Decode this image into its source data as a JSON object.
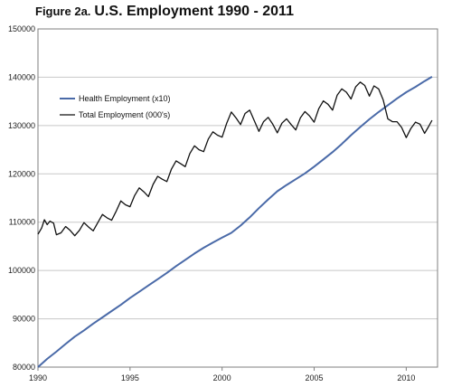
{
  "title": {
    "figure_label": "Figure 2a.",
    "text": "U.S. Employment 1990 - 2011"
  },
  "chart_data": {
    "type": "line",
    "title": "U.S. Employment 1990 - 2011",
    "xlabel": "",
    "ylabel": "",
    "xlim": [
      1990,
      2011.7
    ],
    "ylim": [
      80000,
      150000
    ],
    "x_ticks": [
      1990,
      1995,
      2000,
      2005,
      2010
    ],
    "y_ticks": [
      80000,
      90000,
      100000,
      110000,
      120000,
      130000,
      140000,
      150000
    ],
    "grid": "horizontal",
    "legend_position": "upper-left",
    "series": [
      {
        "name": "Health Employment (x10)",
        "color": "#4a6aa8",
        "points": [
          [
            1990.0,
            80000
          ],
          [
            1990.5,
            81700
          ],
          [
            1991.0,
            83200
          ],
          [
            1991.5,
            84800
          ],
          [
            1992.0,
            86300
          ],
          [
            1992.5,
            87600
          ],
          [
            1993.0,
            89000
          ],
          [
            1993.5,
            90300
          ],
          [
            1994.0,
            91600
          ],
          [
            1994.5,
            92900
          ],
          [
            1995.0,
            94300
          ],
          [
            1995.5,
            95600
          ],
          [
            1996.0,
            96900
          ],
          [
            1996.5,
            98200
          ],
          [
            1997.0,
            99500
          ],
          [
            1997.5,
            100900
          ],
          [
            1998.0,
            102200
          ],
          [
            1998.5,
            103500
          ],
          [
            1999.0,
            104700
          ],
          [
            1999.5,
            105800
          ],
          [
            2000.0,
            106800
          ],
          [
            2000.5,
            107800
          ],
          [
            2001.0,
            109300
          ],
          [
            2001.5,
            111000
          ],
          [
            2002.0,
            112900
          ],
          [
            2002.5,
            114700
          ],
          [
            2003.0,
            116400
          ],
          [
            2003.5,
            117700
          ],
          [
            2004.0,
            118900
          ],
          [
            2004.5,
            120100
          ],
          [
            2005.0,
            121500
          ],
          [
            2005.5,
            123000
          ],
          [
            2006.0,
            124500
          ],
          [
            2006.5,
            126200
          ],
          [
            2007.0,
            128000
          ],
          [
            2007.5,
            129700
          ],
          [
            2008.0,
            131300
          ],
          [
            2008.5,
            132800
          ],
          [
            2009.0,
            134200
          ],
          [
            2009.5,
            135600
          ],
          [
            2010.0,
            136900
          ],
          [
            2010.5,
            138000
          ],
          [
            2011.0,
            139200
          ],
          [
            2011.4,
            140100
          ]
        ]
      },
      {
        "name": "Total Employment (000's)",
        "color": "#111111",
        "points": [
          [
            1990.0,
            107500
          ],
          [
            1990.2,
            108800
          ],
          [
            1990.35,
            110500
          ],
          [
            1990.5,
            109500
          ],
          [
            1990.65,
            110200
          ],
          [
            1990.85,
            109800
          ],
          [
            1991.0,
            107400
          ],
          [
            1991.25,
            107800
          ],
          [
            1991.5,
            109100
          ],
          [
            1991.75,
            108300
          ],
          [
            1992.0,
            107200
          ],
          [
            1992.25,
            108300
          ],
          [
            1992.5,
            109900
          ],
          [
            1992.75,
            109000
          ],
          [
            1993.0,
            108200
          ],
          [
            1993.25,
            109900
          ],
          [
            1993.5,
            111600
          ],
          [
            1993.75,
            110900
          ],
          [
            1994.0,
            110400
          ],
          [
            1994.25,
            112300
          ],
          [
            1994.5,
            114400
          ],
          [
            1994.75,
            113600
          ],
          [
            1995.0,
            113200
          ],
          [
            1995.25,
            115500
          ],
          [
            1995.5,
            117100
          ],
          [
            1995.75,
            116300
          ],
          [
            1996.0,
            115300
          ],
          [
            1996.25,
            117800
          ],
          [
            1996.5,
            119500
          ],
          [
            1996.75,
            118900
          ],
          [
            1997.0,
            118400
          ],
          [
            1997.25,
            121000
          ],
          [
            1997.5,
            122700
          ],
          [
            1997.75,
            122100
          ],
          [
            1998.0,
            121500
          ],
          [
            1998.25,
            124200
          ],
          [
            1998.5,
            125800
          ],
          [
            1998.75,
            125000
          ],
          [
            1999.0,
            124600
          ],
          [
            1999.25,
            127200
          ],
          [
            1999.5,
            128700
          ],
          [
            1999.75,
            128000
          ],
          [
            2000.0,
            127600
          ],
          [
            2000.25,
            130500
          ],
          [
            2000.5,
            132800
          ],
          [
            2000.75,
            131600
          ],
          [
            2001.0,
            130200
          ],
          [
            2001.25,
            132500
          ],
          [
            2001.5,
            133200
          ],
          [
            2001.75,
            131000
          ],
          [
            2002.0,
            128800
          ],
          [
            2002.25,
            130800
          ],
          [
            2002.5,
            131700
          ],
          [
            2002.75,
            130300
          ],
          [
            2003.0,
            128500
          ],
          [
            2003.25,
            130500
          ],
          [
            2003.5,
            131400
          ],
          [
            2003.75,
            130200
          ],
          [
            2004.0,
            129100
          ],
          [
            2004.25,
            131600
          ],
          [
            2004.5,
            132900
          ],
          [
            2004.75,
            132000
          ],
          [
            2005.0,
            130700
          ],
          [
            2005.25,
            133500
          ],
          [
            2005.5,
            135100
          ],
          [
            2005.75,
            134400
          ],
          [
            2006.0,
            133200
          ],
          [
            2006.25,
            136300
          ],
          [
            2006.5,
            137600
          ],
          [
            2006.75,
            136900
          ],
          [
            2007.0,
            135500
          ],
          [
            2007.25,
            138000
          ],
          [
            2007.5,
            139000
          ],
          [
            2007.75,
            138300
          ],
          [
            2008.0,
            136100
          ],
          [
            2008.25,
            138200
          ],
          [
            2008.5,
            137600
          ],
          [
            2008.75,
            135300
          ],
          [
            2009.0,
            131400
          ],
          [
            2009.25,
            130800
          ],
          [
            2009.5,
            130800
          ],
          [
            2009.75,
            129600
          ],
          [
            2010.0,
            127500
          ],
          [
            2010.25,
            129400
          ],
          [
            2010.5,
            130700
          ],
          [
            2010.75,
            130300
          ],
          [
            2011.0,
            128400
          ],
          [
            2011.2,
            129700
          ],
          [
            2011.4,
            131100
          ]
        ]
      }
    ]
  }
}
